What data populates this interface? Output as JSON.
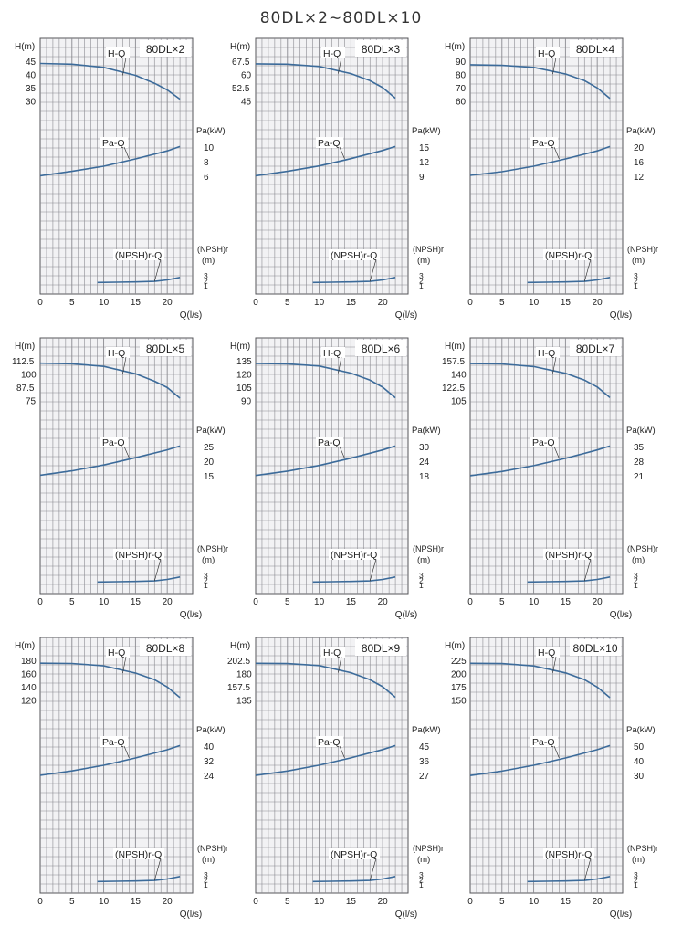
{
  "title": "80DL×2∼80DL×10",
  "colors": {
    "grid": "#8a8a90",
    "panel": "#f2f2f4",
    "curve": "#3c6b9a",
    "text": "#222222",
    "frame": "#55555a"
  },
  "common": {
    "h_axis_label": "H(m)",
    "pa_axis_label": "Pa(kW)",
    "npsh_axis_label_1": "(NPSH)r",
    "npsh_axis_label_2": "(m)",
    "x_axis_label": "Q(l/s)",
    "x_ticks": [
      "0",
      "5",
      "10",
      "15",
      "20"
    ],
    "npsh_ticks": [
      "3",
      "2",
      "1"
    ],
    "hq_label": "H-Q",
    "paq_label": "Pa-Q",
    "npsh_label": "(NPSH)r-Q"
  },
  "chart_data": [
    {
      "type": "line",
      "model": "80DL×2",
      "h_ticks": [
        "45",
        "40",
        "35",
        "30"
      ],
      "h_ticks_num": [
        45,
        40,
        35,
        30
      ],
      "pa_ticks": [
        "10",
        "8",
        "6"
      ],
      "pa_ticks_num": [
        10,
        8,
        6
      ],
      "series": [
        {
          "name": "H-Q",
          "x": [
            0,
            5,
            10,
            15,
            18,
            20,
            22
          ],
          "y": [
            44.5,
            44.2,
            43,
            40,
            37,
            34.5,
            31
          ]
        },
        {
          "name": "Pa-Q",
          "x": [
            0,
            5,
            10,
            15,
            20,
            22
          ],
          "y": [
            6.2,
            6.8,
            7.5,
            8.5,
            9.6,
            10.2
          ]
        },
        {
          "name": "(NPSH)r-Q",
          "x": [
            9,
            12,
            15,
            18,
            20,
            22
          ],
          "y": [
            1.5,
            1.55,
            1.6,
            1.7,
            2.0,
            2.5
          ]
        }
      ]
    },
    {
      "type": "line",
      "model": "80DL×3",
      "h_ticks": [
        "67.5",
        "60",
        "52.5",
        "45"
      ],
      "h_ticks_num": [
        67.5,
        60,
        52.5,
        45
      ],
      "pa_ticks": [
        "15",
        "12",
        "9"
      ],
      "pa_ticks_num": [
        15,
        12,
        9
      ],
      "series": [
        {
          "name": "H-Q",
          "x": [
            0,
            5,
            10,
            15,
            18,
            20,
            22
          ],
          "y": [
            66.5,
            66.3,
            65,
            61,
            57,
            53,
            47
          ]
        },
        {
          "name": "Pa-Q",
          "x": [
            0,
            5,
            10,
            15,
            20,
            22
          ],
          "y": [
            9.3,
            10.2,
            11.3,
            12.8,
            14.5,
            15.3
          ]
        },
        {
          "name": "(NPSH)r-Q",
          "x": [
            9,
            12,
            15,
            18,
            20,
            22
          ],
          "y": [
            1.5,
            1.55,
            1.6,
            1.7,
            2.0,
            2.5
          ]
        }
      ]
    },
    {
      "type": "line",
      "model": "80DL×4",
      "h_ticks": [
        "90",
        "80",
        "70",
        "60"
      ],
      "h_ticks_num": [
        90,
        80,
        70,
        60
      ],
      "pa_ticks": [
        "20",
        "16",
        "12"
      ],
      "pa_ticks_num": [
        20,
        16,
        12
      ],
      "series": [
        {
          "name": "H-Q",
          "x": [
            0,
            5,
            10,
            15,
            18,
            20,
            22
          ],
          "y": [
            88,
            87.5,
            86,
            81,
            76,
            70.5,
            62.5
          ]
        },
        {
          "name": "Pa-Q",
          "x": [
            0,
            5,
            10,
            15,
            20,
            22
          ],
          "y": [
            12.5,
            13.5,
            15,
            17,
            19.2,
            20.4
          ]
        },
        {
          "name": "(NPSH)r-Q",
          "x": [
            9,
            12,
            15,
            18,
            20,
            22
          ],
          "y": [
            1.5,
            1.55,
            1.6,
            1.7,
            2.0,
            2.5
          ]
        }
      ]
    },
    {
      "type": "line",
      "model": "80DL×5",
      "h_ticks": [
        "112.5",
        "100",
        "87.5",
        "75"
      ],
      "h_ticks_num": [
        112.5,
        100,
        87.5,
        75
      ],
      "pa_ticks": [
        "25",
        "20",
        "15"
      ],
      "pa_ticks_num": [
        25,
        20,
        15
      ],
      "series": [
        {
          "name": "H-Q",
          "x": [
            0,
            5,
            10,
            15,
            18,
            20,
            22
          ],
          "y": [
            111,
            110.5,
            108,
            101,
            94,
            88,
            78
          ]
        },
        {
          "name": "Pa-Q",
          "x": [
            0,
            5,
            10,
            15,
            20,
            22
          ],
          "y": [
            15.5,
            17,
            19,
            21.5,
            24.2,
            25.5
          ]
        },
        {
          "name": "(NPSH)r-Q",
          "x": [
            9,
            12,
            15,
            18,
            20,
            22
          ],
          "y": [
            1.5,
            1.55,
            1.6,
            1.7,
            2.0,
            2.5
          ]
        }
      ]
    },
    {
      "type": "line",
      "model": "80DL×6",
      "h_ticks": [
        "135",
        "120",
        "105",
        "90"
      ],
      "h_ticks_num": [
        135,
        120,
        105,
        90
      ],
      "pa_ticks": [
        "30",
        "24",
        "18"
      ],
      "pa_ticks_num": [
        30,
        24,
        18
      ],
      "series": [
        {
          "name": "H-Q",
          "x": [
            0,
            5,
            10,
            15,
            18,
            20,
            22
          ],
          "y": [
            133,
            132.5,
            130,
            122,
            114,
            106,
            94
          ]
        },
        {
          "name": "Pa-Q",
          "x": [
            0,
            5,
            10,
            15,
            20,
            22
          ],
          "y": [
            18.5,
            20.3,
            22.6,
            25.6,
            29,
            30.6
          ]
        },
        {
          "name": "(NPSH)r-Q",
          "x": [
            9,
            12,
            15,
            18,
            20,
            22
          ],
          "y": [
            1.5,
            1.55,
            1.6,
            1.7,
            2.0,
            2.5
          ]
        }
      ]
    },
    {
      "type": "line",
      "model": "80DL×7",
      "h_ticks": [
        "157.5",
        "140",
        "122.5",
        "105"
      ],
      "h_ticks_num": [
        157.5,
        140,
        122.5,
        105
      ],
      "pa_ticks": [
        "35",
        "28",
        "21"
      ],
      "pa_ticks_num": [
        35,
        28,
        21
      ],
      "series": [
        {
          "name": "H-Q",
          "x": [
            0,
            5,
            10,
            15,
            18,
            20,
            22
          ],
          "y": [
            155,
            154.5,
            151,
            142,
            133,
            124,
            110
          ]
        },
        {
          "name": "Pa-Q",
          "x": [
            0,
            5,
            10,
            15,
            20,
            22
          ],
          "y": [
            21.5,
            23.5,
            26.3,
            29.8,
            33.8,
            35.7
          ]
        },
        {
          "name": "(NPSH)r-Q",
          "x": [
            9,
            12,
            15,
            18,
            20,
            22
          ],
          "y": [
            1.5,
            1.55,
            1.6,
            1.7,
            2.0,
            2.5
          ]
        }
      ]
    },
    {
      "type": "line",
      "model": "80DL×8",
      "h_ticks": [
        "180",
        "160",
        "140",
        "120"
      ],
      "h_ticks_num": [
        180,
        160,
        140,
        120
      ],
      "pa_ticks": [
        "40",
        "32",
        "24"
      ],
      "pa_ticks_num": [
        40,
        32,
        24
      ],
      "series": [
        {
          "name": "H-Q",
          "x": [
            0,
            5,
            10,
            15,
            18,
            20,
            22
          ],
          "y": [
            177,
            176.5,
            173,
            162,
            152,
            141,
            125
          ]
        },
        {
          "name": "Pa-Q",
          "x": [
            0,
            5,
            10,
            15,
            20,
            22
          ],
          "y": [
            24.5,
            26.9,
            30,
            34,
            38.5,
            40.8
          ]
        },
        {
          "name": "(NPSH)r-Q",
          "x": [
            9,
            12,
            15,
            18,
            20,
            22
          ],
          "y": [
            1.5,
            1.55,
            1.6,
            1.7,
            2.0,
            2.5
          ]
        }
      ]
    },
    {
      "type": "line",
      "model": "80DL×9",
      "h_ticks": [
        "202.5",
        "180",
        "157.5",
        "135"
      ],
      "h_ticks_num": [
        202.5,
        180,
        157.5,
        135
      ],
      "pa_ticks": [
        "45",
        "36",
        "27"
      ],
      "pa_ticks_num": [
        45,
        36,
        27
      ],
      "series": [
        {
          "name": "H-Q",
          "x": [
            0,
            5,
            10,
            15,
            18,
            20,
            22
          ],
          "y": [
            199,
            198.5,
            195,
            183,
            171,
            159,
            141
          ]
        },
        {
          "name": "Pa-Q",
          "x": [
            0,
            5,
            10,
            15,
            20,
            22
          ],
          "y": [
            27.5,
            30.2,
            33.8,
            38.3,
            43.4,
            45.9
          ]
        },
        {
          "name": "(NPSH)r-Q",
          "x": [
            9,
            12,
            15,
            18,
            20,
            22
          ],
          "y": [
            1.5,
            1.55,
            1.6,
            1.7,
            2.0,
            2.5
          ]
        }
      ]
    },
    {
      "type": "line",
      "model": "80DL×10",
      "h_ticks": [
        "225",
        "200",
        "175",
        "150"
      ],
      "h_ticks_num": [
        225,
        200,
        175,
        150
      ],
      "pa_ticks": [
        "50",
        "40",
        "30"
      ],
      "pa_ticks_num": [
        50,
        40,
        30
      ],
      "series": [
        {
          "name": "H-Q",
          "x": [
            0,
            5,
            10,
            15,
            18,
            20,
            22
          ],
          "y": [
            221,
            220.5,
            216,
            203,
            190,
            176,
            156
          ]
        },
        {
          "name": "Pa-Q",
          "x": [
            0,
            5,
            10,
            15,
            20,
            22
          ],
          "y": [
            30.5,
            33.5,
            37.5,
            42.5,
            48.2,
            51
          ]
        },
        {
          "name": "(NPSH)r-Q",
          "x": [
            9,
            12,
            15,
            18,
            20,
            22
          ],
          "y": [
            1.5,
            1.55,
            1.6,
            1.7,
            2.0,
            2.5
          ]
        }
      ]
    }
  ]
}
